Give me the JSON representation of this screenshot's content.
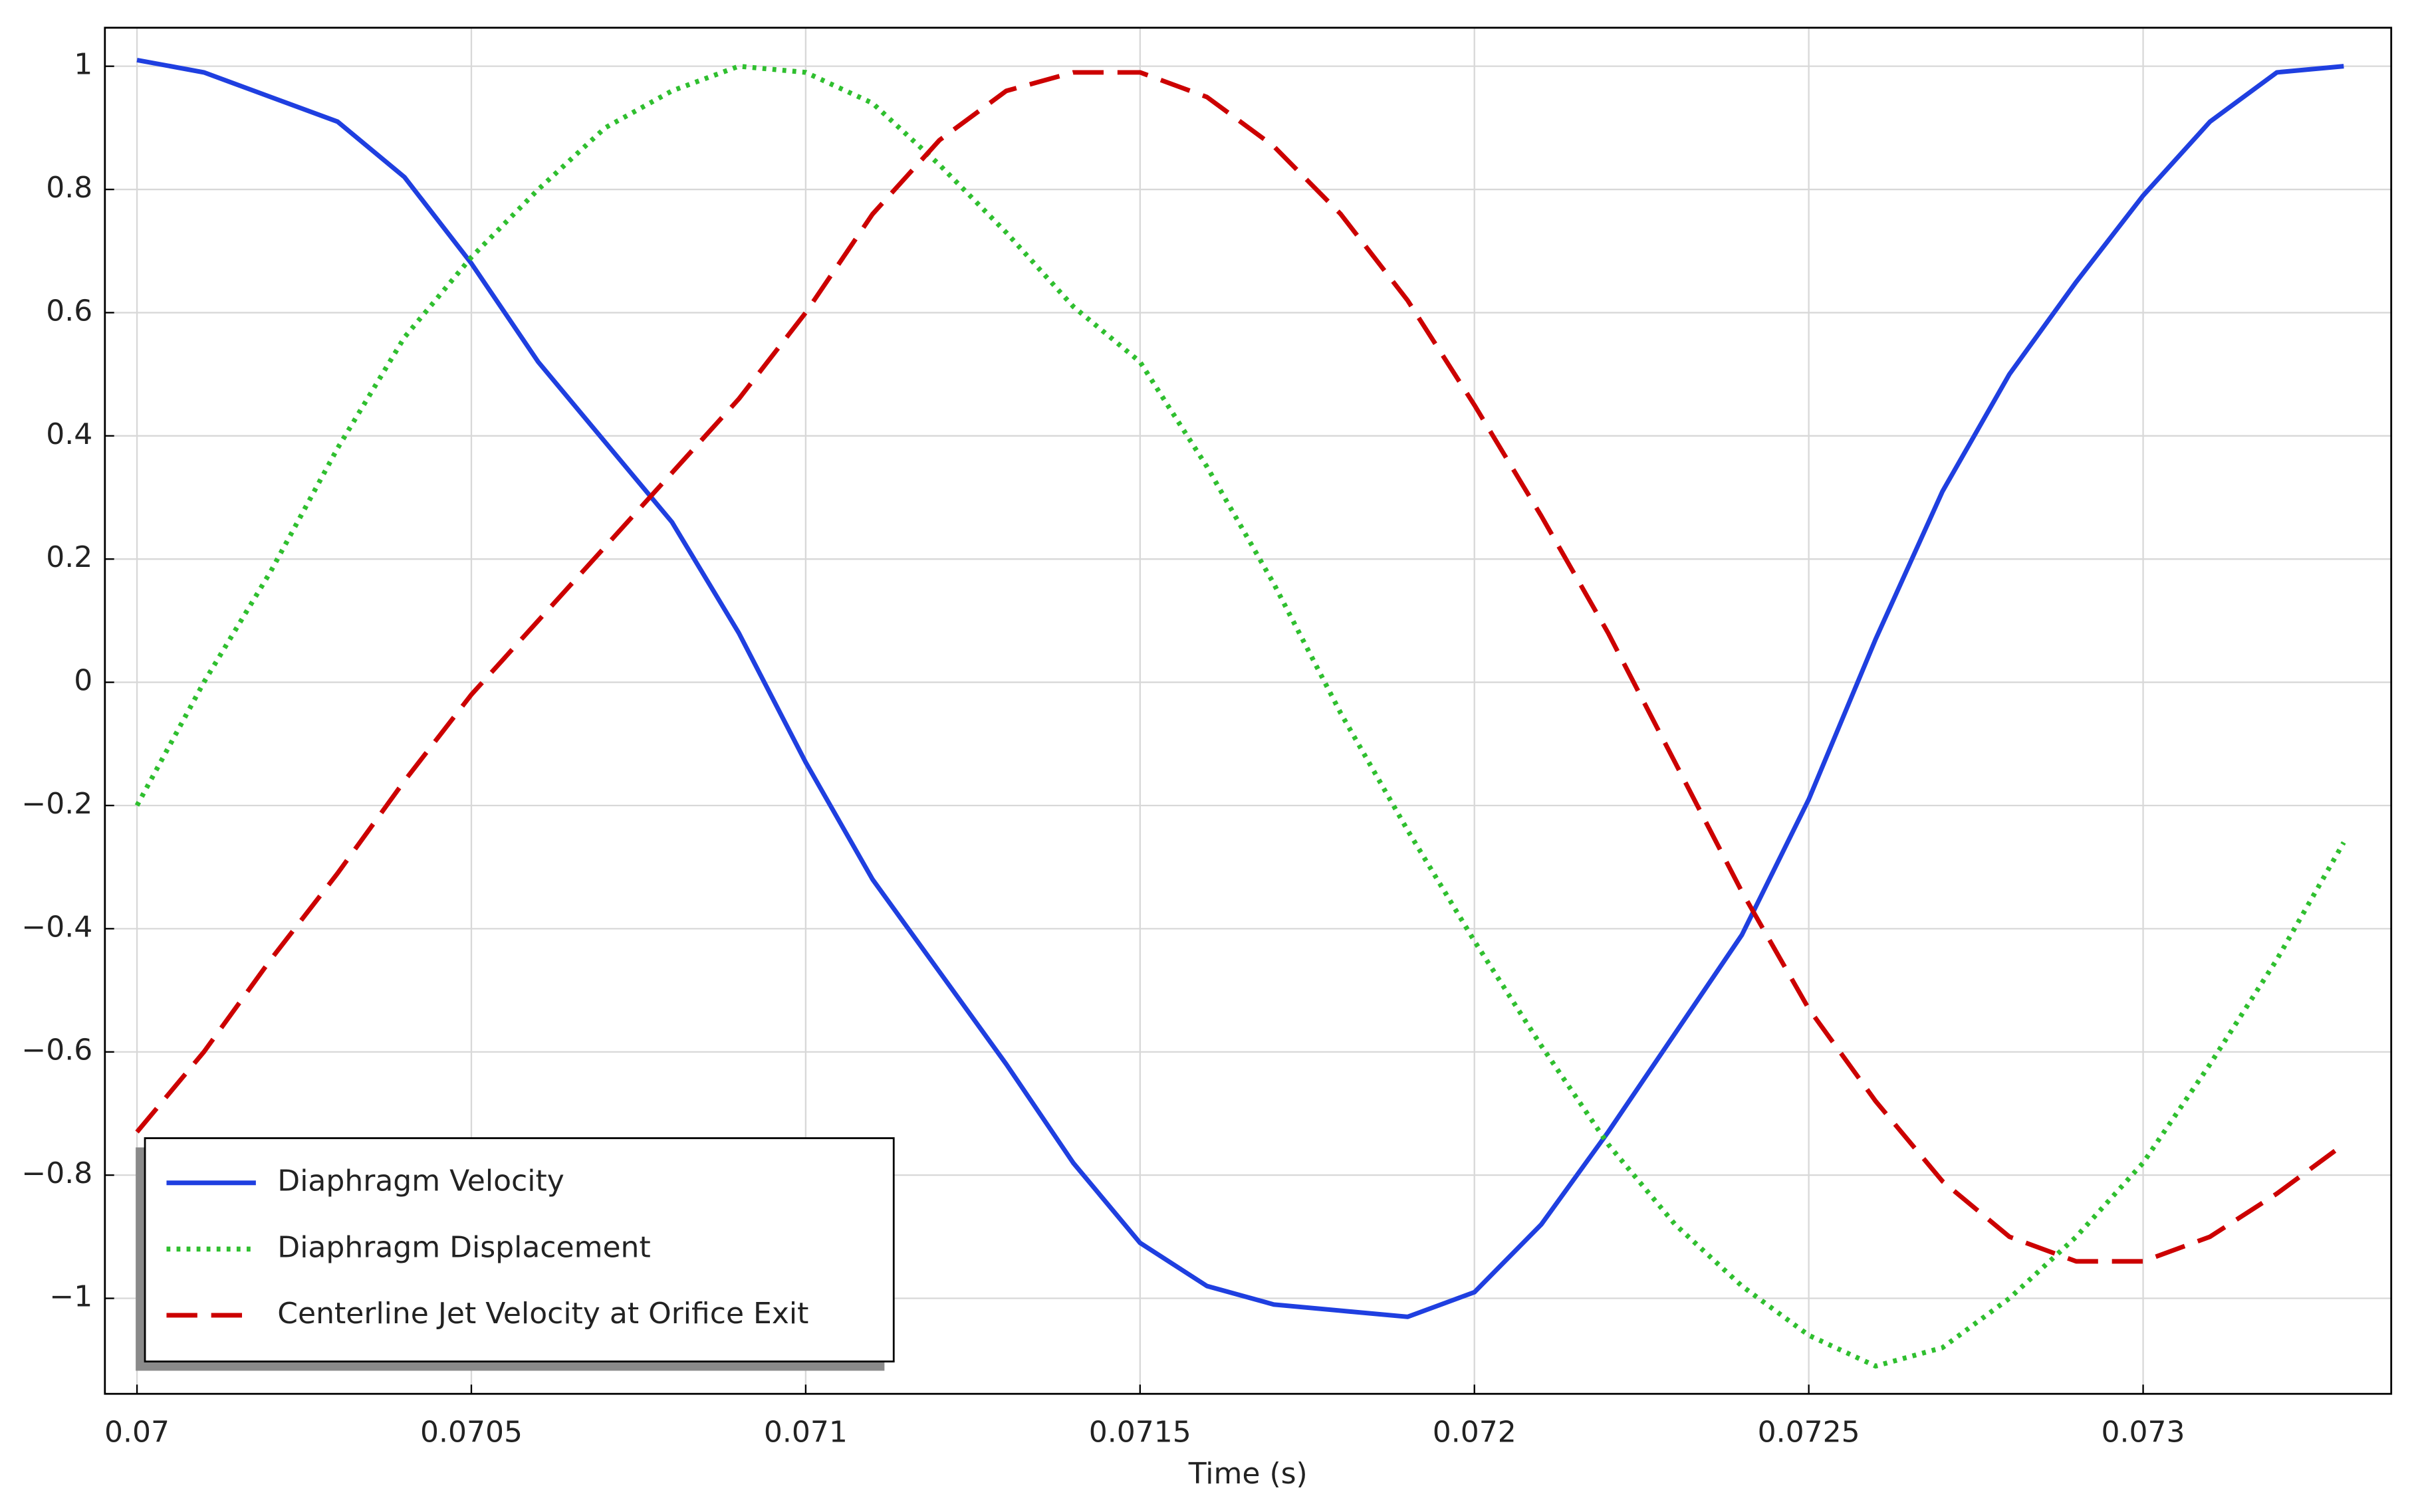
{
  "chart_data": {
    "type": "line",
    "x": [
      0.07,
      0.0701,
      0.0702,
      0.0703,
      0.0704,
      0.0705,
      0.0706,
      0.0707,
      0.0708,
      0.0709,
      0.071,
      0.0711,
      0.0712,
      0.0713,
      0.0714,
      0.0715,
      0.0716,
      0.0717,
      0.0718,
      0.0719,
      0.072,
      0.0721,
      0.0722,
      0.0723,
      0.0724,
      0.0725,
      0.0726,
      0.0727,
      0.0728,
      0.0729,
      0.073,
      0.0731,
      0.0732,
      0.0733
    ],
    "series": [
      {
        "name": "Diaphragm Velocity",
        "color": "#1f3fe0",
        "dash": "solid",
        "values": [
          1.01,
          0.99,
          0.95,
          0.91,
          0.82,
          0.68,
          0.52,
          0.39,
          0.26,
          0.08,
          -0.13,
          -0.32,
          -0.47,
          -0.62,
          -0.78,
          -0.91,
          -0.98,
          -1.01,
          -1.02,
          -1.03,
          -0.99,
          -0.88,
          -0.73,
          -0.57,
          -0.41,
          -0.19,
          0.07,
          0.31,
          0.5,
          0.65,
          0.79,
          0.91,
          0.99,
          1.0
        ]
      },
      {
        "name": "Diaphragm Displacement",
        "color": "#2fbf2f",
        "dash": "dotted",
        "values": [
          -0.2,
          0.0,
          0.18,
          0.38,
          0.56,
          0.69,
          0.8,
          0.9,
          0.96,
          1.0,
          0.99,
          0.94,
          0.84,
          0.73,
          0.61,
          0.52,
          0.35,
          0.16,
          -0.05,
          -0.24,
          -0.42,
          -0.59,
          -0.75,
          -0.88,
          -0.98,
          -1.06,
          -1.11,
          -1.08,
          -1.0,
          -0.9,
          -0.78,
          -0.62,
          -0.45,
          -0.26
        ]
      },
      {
        "name": "Centerline Jet Velocity at Orifice Exit",
        "color": "#cc0000",
        "dash": "dashed",
        "values": [
          -0.73,
          -0.6,
          -0.45,
          -0.31,
          -0.16,
          -0.02,
          0.1,
          0.22,
          0.34,
          0.46,
          0.6,
          0.76,
          0.88,
          0.96,
          0.99,
          0.99,
          0.95,
          0.87,
          0.76,
          0.62,
          0.45,
          0.27,
          0.08,
          -0.13,
          -0.34,
          -0.53,
          -0.68,
          -0.81,
          -0.9,
          -0.94,
          -0.94,
          -0.9,
          -0.83,
          -0.75
        ]
      }
    ],
    "xlabel": "Time (s)",
    "xlim": [
      0.069952,
      0.073371
    ],
    "ylim": [
      -1.155,
      1.0625
    ],
    "xticks": [
      0.07,
      0.0705,
      0.071,
      0.0715,
      0.072,
      0.0725,
      0.073
    ],
    "yticks": [
      {
        "value": -1,
        "label": "−1"
      },
      {
        "value": -0.8,
        "label": "−0.8"
      },
      {
        "value": -0.6,
        "label": "−0.6"
      },
      {
        "value": -0.4,
        "label": "−0.4"
      },
      {
        "value": -0.2,
        "label": "−0.2"
      },
      0,
      0.2,
      0.4,
      0.6,
      0.8,
      1
    ],
    "grid": true,
    "legend": "lower left"
  }
}
